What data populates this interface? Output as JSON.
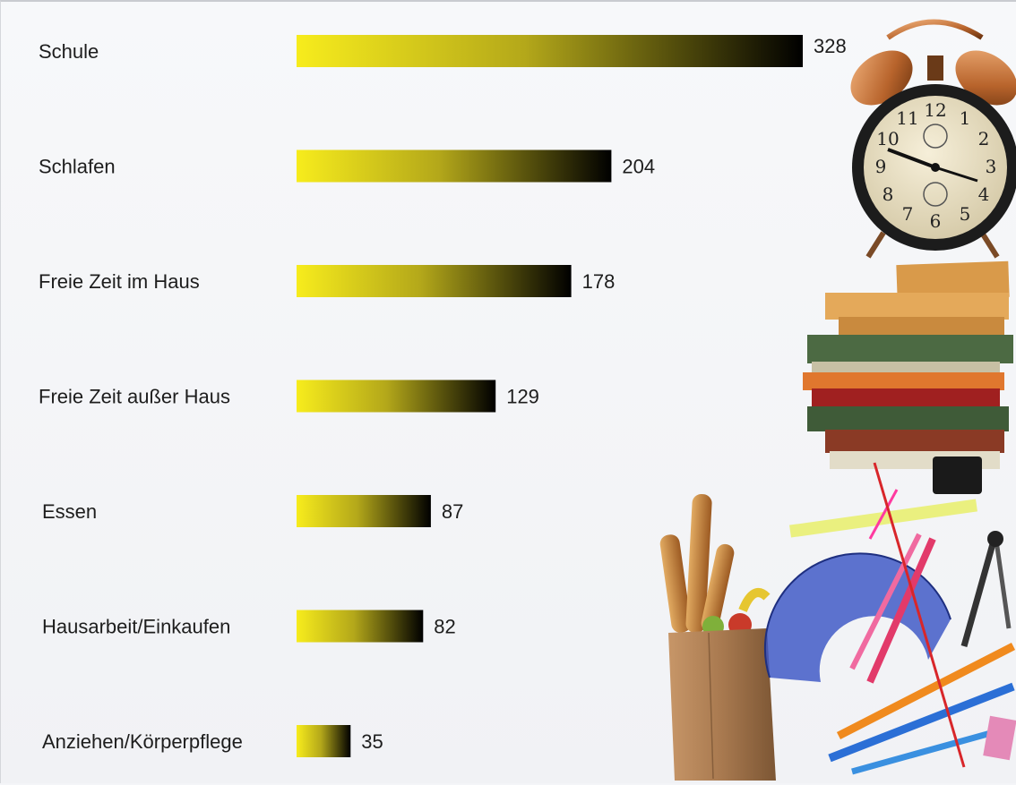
{
  "chart_data": {
    "type": "bar",
    "orientation": "horizontal",
    "title": "",
    "xlabel": "",
    "ylabel": "",
    "categories": [
      "Schule",
      "Schlafen",
      "Freie Zeit im Haus",
      "Freie Zeit außer Haus",
      "Essen",
      "Hausarbeit/Einkaufen",
      "Anziehen/Körperpflege"
    ],
    "values": [
      328,
      204,
      178,
      129,
      87,
      82,
      35
    ],
    "value_labels": [
      "328",
      "204",
      "178",
      "129",
      "87",
      "82",
      "35"
    ],
    "xlim": [
      0,
      328
    ],
    "grid": false,
    "legend": "none",
    "bar_gradient": [
      "#f5ea1a",
      "#000000"
    ]
  },
  "illustration": {
    "icons": [
      "alarm-clock-icon",
      "book-stack-icon",
      "bread-bag-icon",
      "protractor-icon",
      "pencils-icon",
      "compass-icon"
    ]
  }
}
